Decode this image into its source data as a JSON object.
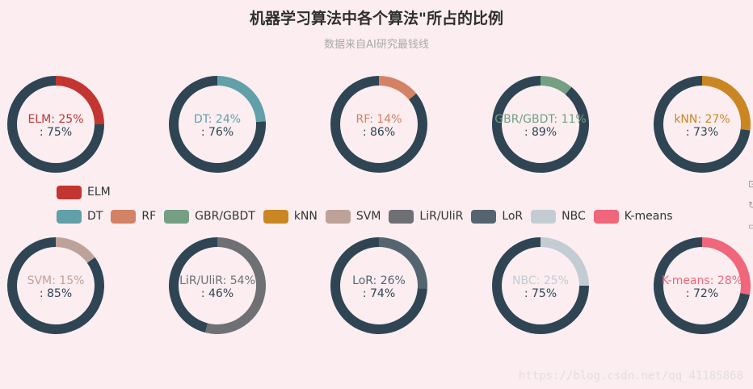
{
  "title": "机器学习算法中各个算法\"所占的比例",
  "subtitle": "数据来自AI研究最钱线",
  "watermark": "https://blog.csdn.net/qq_41185868",
  "colors": {
    "background": "#fbedf0",
    "remainder": "#2f4554"
  },
  "legend": {
    "rows": [
      [
        {
          "name": "ELM",
          "color": "#c23531"
        }
      ],
      [
        {
          "name": "DT",
          "color": "#61a0a8"
        },
        {
          "name": "RF",
          "color": "#d48265"
        },
        {
          "name": "GBR/GBDT",
          "color": "#749f83"
        },
        {
          "name": "kNN",
          "color": "#ca8622"
        },
        {
          "name": "SVM",
          "color": "#bda29a"
        },
        {
          "name": "LiR/UliR",
          "color": "#6e7074"
        },
        {
          "name": "LoR",
          "color": "#546570"
        },
        {
          "name": "NBC",
          "color": "#c4ccd3"
        },
        {
          "name": "K-means",
          "color": "#f0667a"
        }
      ]
    ]
  },
  "chart_data": {
    "type": "pie",
    "layout": "2 rows x 5 donuts",
    "series": [
      {
        "name": "ELM",
        "value": 25,
        "rest": 75,
        "label": "ELM: 25%",
        "rest_label": ": 75%",
        "color": "#c23531"
      },
      {
        "name": "DT",
        "value": 24,
        "rest": 76,
        "label": "DT: 24%",
        "rest_label": ": 76%",
        "color": "#61a0a8"
      },
      {
        "name": "RF",
        "value": 14,
        "rest": 86,
        "label": "RF: 14%",
        "rest_label": ": 86%",
        "color": "#d48265"
      },
      {
        "name": "GBR/GBDT",
        "value": 11,
        "rest": 89,
        "label": "GBR/GBDT: 11%",
        "rest_label": ": 89%",
        "color": "#749f83"
      },
      {
        "name": "kNN",
        "value": 27,
        "rest": 73,
        "label": "kNN: 27%",
        "rest_label": ": 73%",
        "color": "#ca8622"
      },
      {
        "name": "SVM",
        "value": 15,
        "rest": 85,
        "label": "SVM: 15%",
        "rest_label": ": 85%",
        "color": "#bda29a"
      },
      {
        "name": "LiR/UliR",
        "value": 54,
        "rest": 46,
        "label": "LiR/UliR: 54%",
        "rest_label": ": 46%",
        "color": "#6e7074"
      },
      {
        "name": "LoR",
        "value": 26,
        "rest": 74,
        "label": "LoR: 26%",
        "rest_label": ": 74%",
        "color": "#546570"
      },
      {
        "name": "NBC",
        "value": 25,
        "rest": 75,
        "label": "NBC: 25%",
        "rest_label": ": 75%",
        "color": "#c4ccd3"
      },
      {
        "name": "K-means",
        "value": 28,
        "rest": 72,
        "label": "K-means: 28%",
        "rest_label": ": 72%",
        "color": "#f0667a"
      }
    ]
  }
}
